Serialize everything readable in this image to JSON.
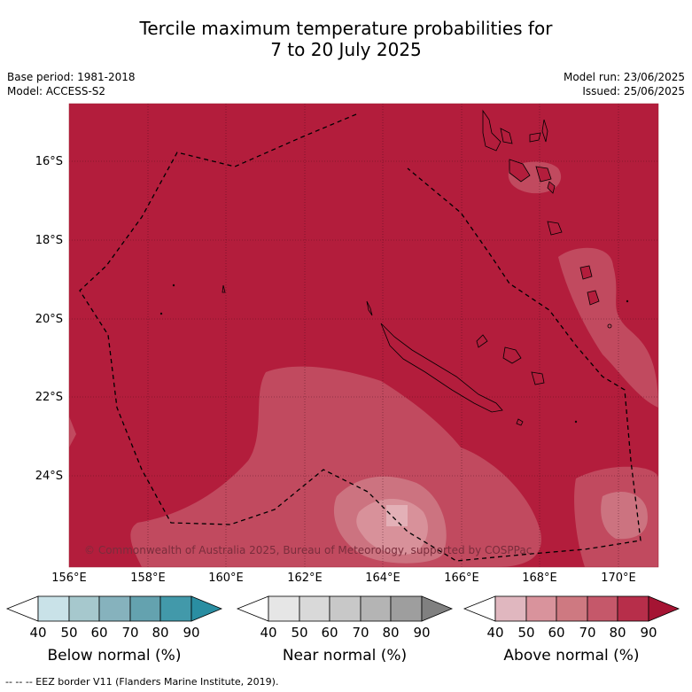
{
  "title_line1": "Tercile maximum temperature probabilities for",
  "title_line2": "7 to 20 July 2025",
  "meta": {
    "base_period": "Base period: 1981-2018",
    "model": "Model: ACCESS-S2",
    "model_run": "Model run: 23/06/2025",
    "issued": "Issued: 25/06/2025"
  },
  "map": {
    "lat_labels": [
      "16°S",
      "18°S",
      "20°S",
      "22°S",
      "24°S"
    ],
    "lon_labels": [
      "156°E",
      "158°E",
      "160°E",
      "162°E",
      "164°E",
      "166°E",
      "168°E",
      "170°E"
    ],
    "copyright": "© Commonwealth of Australia 2025, Bureau of Meteorology, supported by COSPPac",
    "colors": {
      "above_80_90": "#b31d3c",
      "above_70_80": "#c14a5f",
      "above_60_70": "#cc7380",
      "above_50_60": "#dc9aa3"
    }
  },
  "colorbars": {
    "below": {
      "title": "Below normal (%)",
      "ticks": [
        "40",
        "50",
        "60",
        "70",
        "80",
        "90"
      ],
      "colors": [
        "#c9e2e8",
        "#a6c8cd",
        "#86b2bd",
        "#64a2af",
        "#4299aa",
        "#2a8ea2"
      ]
    },
    "near": {
      "title": "Near normal (%)",
      "ticks": [
        "40",
        "50",
        "60",
        "70",
        "80",
        "90"
      ],
      "colors": [
        "#e6e6e6",
        "#d9d9d9",
        "#c8c8c8",
        "#b4b4b4",
        "#9e9e9e",
        "#808080"
      ]
    },
    "above": {
      "title": "Above normal (%)",
      "ticks": [
        "40",
        "50",
        "60",
        "70",
        "80",
        "90"
      ],
      "colors": [
        "#e0b7bf",
        "#d9939c",
        "#ce7981",
        "#c5586a",
        "#b72e4a",
        "#a51433"
      ]
    }
  },
  "footer": "--  --  -- EEZ border V11 (Flanders Marine Institute, 2019)."
}
